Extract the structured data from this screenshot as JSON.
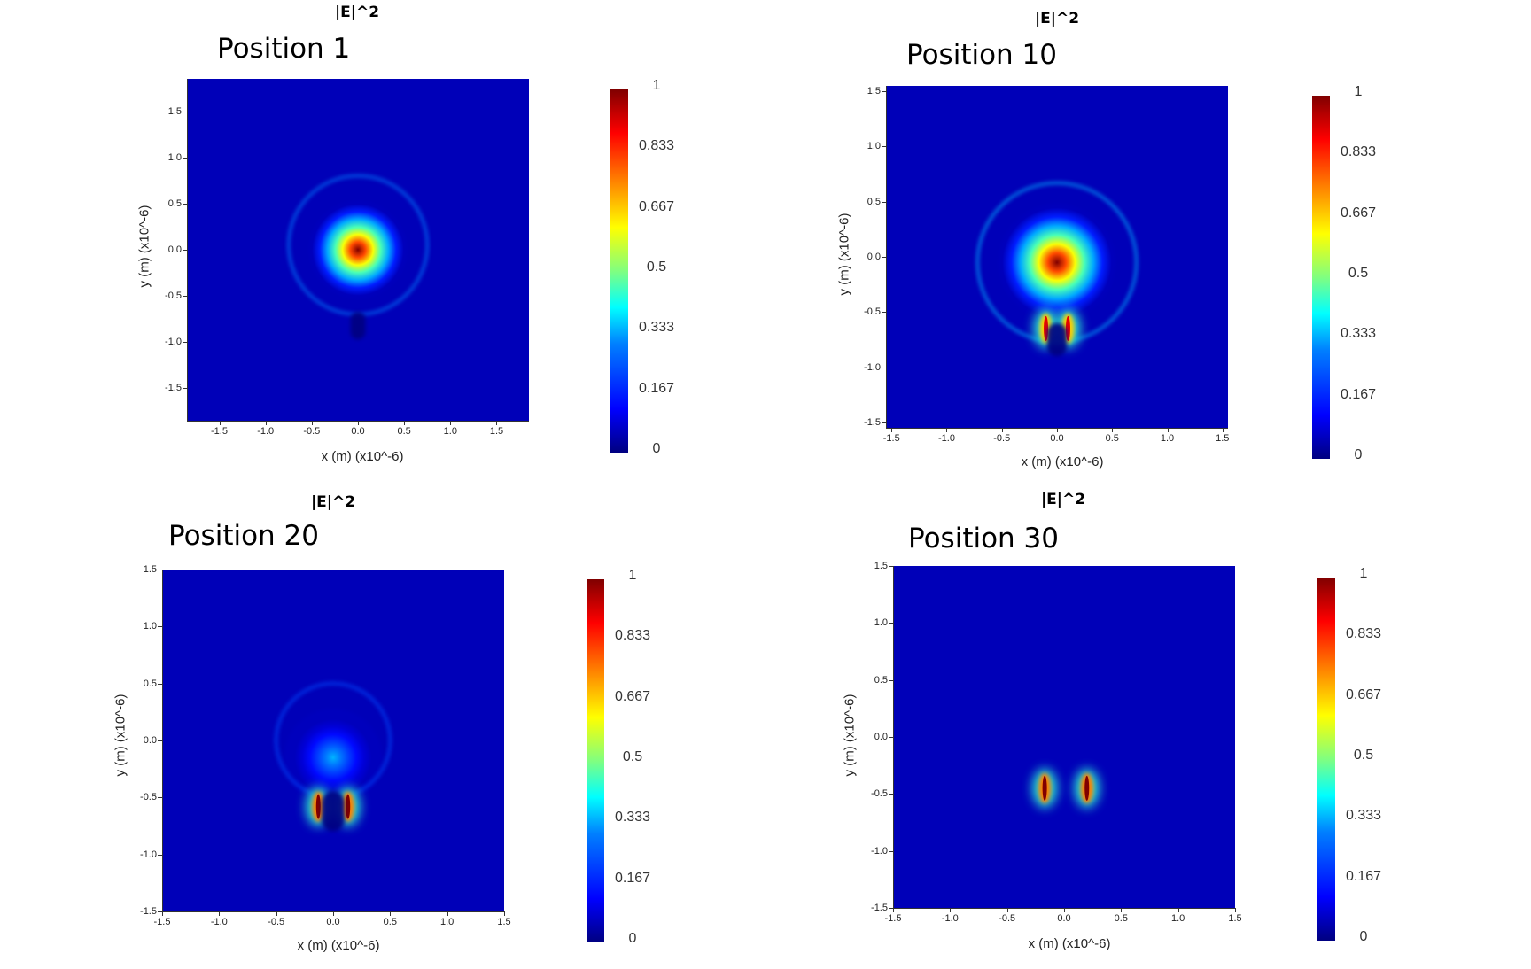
{
  "chart_data": [
    {
      "type": "heatmap",
      "title": "|E|^2",
      "subtitle": "Position 1",
      "xlabel": "x (m) (x10^-6)",
      "ylabel": "y (m) (x10^-6)",
      "xlim": [
        -1.85,
        1.85
      ],
      "ylim": [
        -1.85,
        1.85
      ],
      "x_ticks": [
        "-1.5",
        "-1.0",
        "-0.5",
        "0.0",
        "0.5",
        "1.0",
        "1.5"
      ],
      "y_ticks": [
        "1.5",
        "1.0",
        "0.5",
        "0.0",
        "-0.5",
        "-1.0",
        "-1.5"
      ],
      "colorbar_ticks": [
        "1",
        "0.833",
        "0.667",
        "0.5",
        "0.333",
        "0.167",
        "0"
      ],
      "colorbar_range": [
        0,
        1
      ],
      "colormap": "jet",
      "features": [
        {
          "kind": "hotspot",
          "x": 0.0,
          "y": 0.0,
          "radius": 0.55,
          "peak": 1.0
        },
        {
          "kind": "ring",
          "x": 0.0,
          "y": 0.05,
          "radius": 0.75,
          "peak": 0.25
        },
        {
          "kind": "dark_gap",
          "x": 0.0,
          "y": -0.82,
          "width": 0.16,
          "height": 0.3
        }
      ]
    },
    {
      "type": "heatmap",
      "title": "|E|^2",
      "subtitle": "Position 10",
      "xlabel": "x (m) (x10^-6)",
      "ylabel": "y (m) (x10^-6)",
      "xlim": [
        -1.55,
        1.55
      ],
      "ylim": [
        -1.55,
        1.55
      ],
      "x_ticks": [
        "-1.5",
        "-1.0",
        "-0.5",
        "0.0",
        "0.5",
        "1.0",
        "1.5"
      ],
      "y_ticks": [
        "1.5",
        "1.0",
        "0.5",
        "0.0",
        "-0.5",
        "-1.0",
        "-1.5"
      ],
      "colorbar_ticks": [
        "1",
        "0.833",
        "0.667",
        "0.5",
        "0.333",
        "0.167",
        "0"
      ],
      "colorbar_range": [
        0,
        1
      ],
      "colormap": "jet",
      "features": [
        {
          "kind": "hotspot",
          "x": 0.0,
          "y": -0.05,
          "radius": 0.55,
          "peak": 1.0
        },
        {
          "kind": "ring",
          "x": 0.0,
          "y": -0.05,
          "radius": 0.72,
          "peak": 0.3
        },
        {
          "kind": "edge_spot",
          "x": -0.1,
          "y": -0.65,
          "peak": 0.9
        },
        {
          "kind": "edge_spot",
          "x": 0.1,
          "y": -0.65,
          "peak": 0.9
        },
        {
          "kind": "dark_gap",
          "x": 0.0,
          "y": -0.75,
          "width": 0.18,
          "height": 0.3
        }
      ]
    },
    {
      "type": "heatmap",
      "title": "|E|^2",
      "subtitle": "Position 20",
      "xlabel": "x (m) (x10^-6)",
      "ylabel": "y (m) (x10^-6)",
      "xlim": [
        -1.5,
        1.5
      ],
      "ylim": [
        -1.5,
        1.5
      ],
      "x_ticks": [
        "-1.5",
        "-1.0",
        "-0.5",
        "0.0",
        "0.5",
        "1.0",
        "1.5"
      ],
      "y_ticks": [
        "1.5",
        "1.0",
        "0.5",
        "0.0",
        "-0.5",
        "-1.0",
        "-1.5"
      ],
      "colorbar_ticks": [
        "1",
        "0.833",
        "0.667",
        "0.5",
        "0.333",
        "0.167",
        "0"
      ],
      "colorbar_range": [
        0,
        1
      ],
      "colormap": "jet",
      "features": [
        {
          "kind": "hotspot",
          "x": 0.0,
          "y": -0.15,
          "radius": 0.45,
          "peak": 0.3
        },
        {
          "kind": "ring",
          "x": 0.0,
          "y": 0.0,
          "radius": 0.5,
          "peak": 0.2
        },
        {
          "kind": "edge_spot",
          "x": -0.13,
          "y": -0.58,
          "peak": 1.0
        },
        {
          "kind": "edge_spot",
          "x": 0.13,
          "y": -0.58,
          "peak": 1.0
        },
        {
          "kind": "dark_gap",
          "x": 0.0,
          "y": -0.62,
          "width": 0.2,
          "height": 0.35
        }
      ]
    },
    {
      "type": "heatmap",
      "title": "|E|^2",
      "subtitle": "Position 30",
      "xlabel": "x (m) (x10^-6)",
      "ylabel": "y (m) (x10^-6)",
      "xlim": [
        -1.5,
        1.5
      ],
      "ylim": [
        -1.5,
        1.5
      ],
      "x_ticks": [
        "-1.5",
        "-1.0",
        "-0.5",
        "0.0",
        "0.5",
        "1.0",
        "1.5"
      ],
      "y_ticks": [
        "1.5",
        "1.0",
        "0.5",
        "0.0",
        "-0.5",
        "-1.0",
        "-1.5"
      ],
      "colorbar_ticks": [
        "1",
        "0.833",
        "0.667",
        "0.5",
        "0.333",
        "0.167",
        "0"
      ],
      "colorbar_range": [
        0,
        1
      ],
      "colormap": "jet",
      "features": [
        {
          "kind": "edge_spot",
          "x": -0.17,
          "y": -0.45,
          "peak": 1.0
        },
        {
          "kind": "edge_spot",
          "x": 0.2,
          "y": -0.45,
          "peak": 1.0
        }
      ]
    }
  ]
}
